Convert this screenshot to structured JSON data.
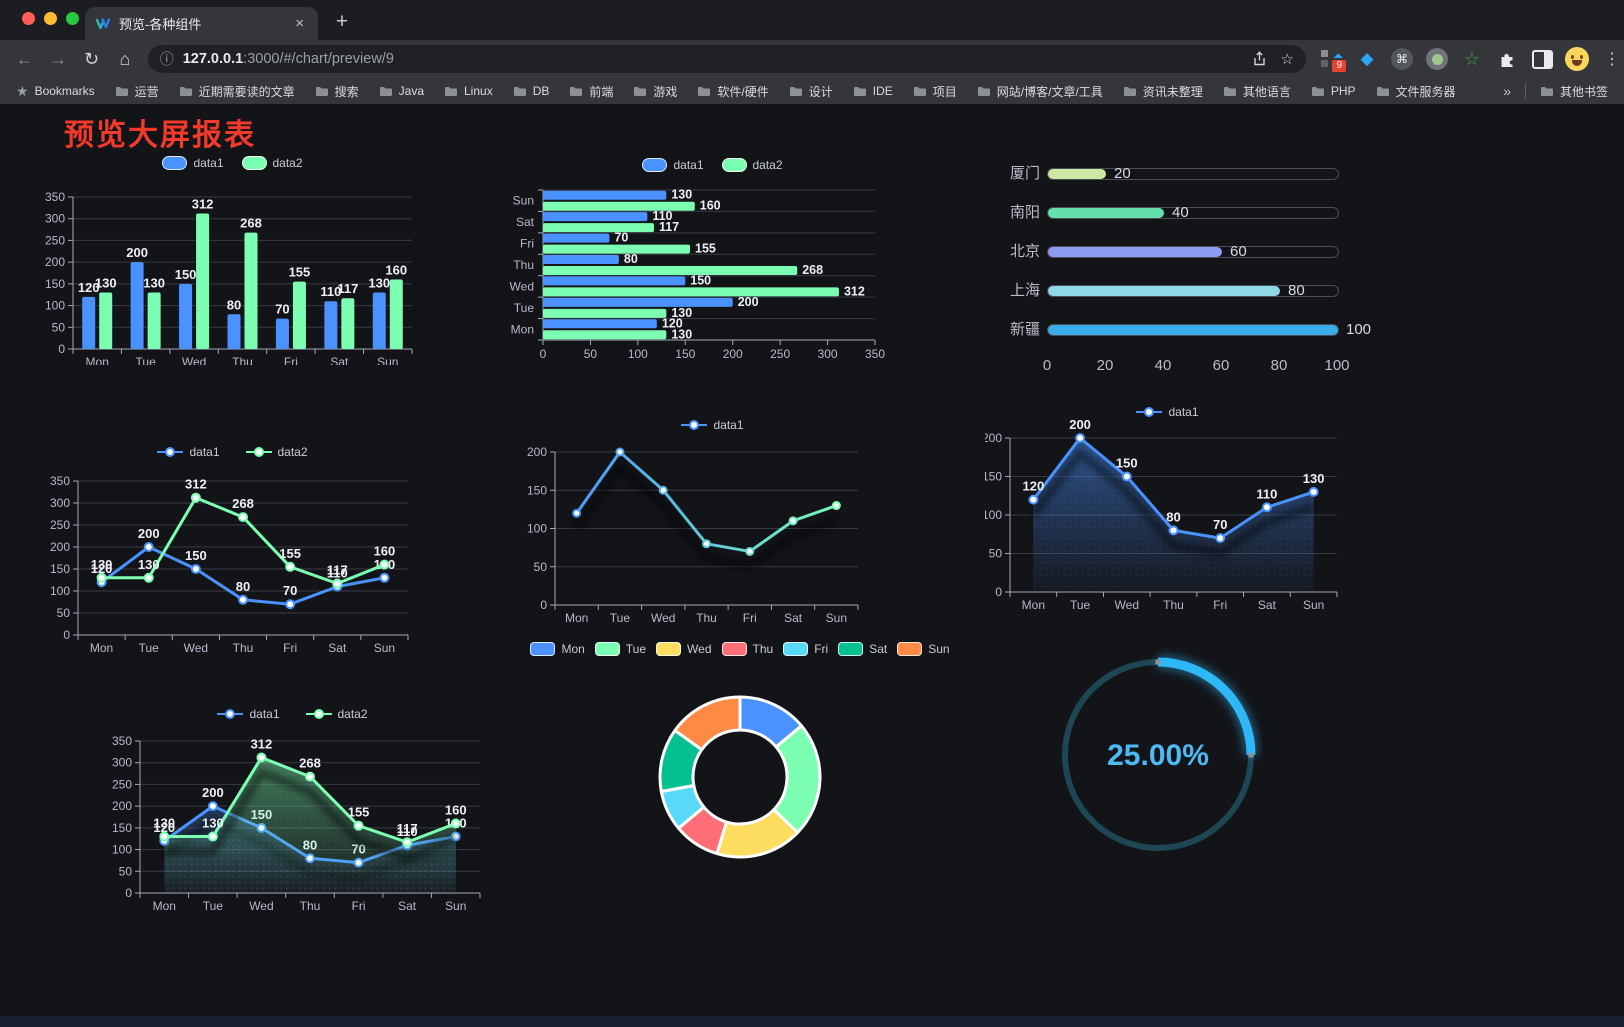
{
  "browser": {
    "tab": {
      "title": "预览-各种组件"
    },
    "tab_close": "×",
    "new_tab_button": "+",
    "url": {
      "host": "127.0.0.1",
      "rest": ":3000/#/chart/preview/9"
    },
    "extension_badge": "9",
    "bookmarks_label": "Bookmarks",
    "bookmarks": [
      "运营",
      "近期需要读的文章",
      "搜索",
      "Java",
      "Linux",
      "DB",
      "前端",
      "游戏",
      "软件/硬件",
      "设计",
      "IDE",
      "项目",
      "网站/博客/文章/工具",
      "资讯未整理",
      "其他语言",
      "PHP",
      "文件服务器"
    ],
    "bookmarks_overflow": "»",
    "other_bookmarks": "其他书签",
    "icons": {
      "back": "←",
      "forward": "→",
      "reload": "↻",
      "home": "⌂",
      "info": "ⓘ",
      "star_outline": "☆",
      "bookmark_star": "★",
      "menu_kebab": "⋮",
      "command": "⌘",
      "extension_diamond": "◆",
      "share": "svg:tray-arrow-up",
      "extensions_puzzle": "svg:puzzle",
      "split_view": "svg:sidebar-square",
      "folder": "svg:folder"
    }
  },
  "page": {
    "title": "预览大屏报表"
  },
  "colors": {
    "blue": "#4992ff",
    "green": "#7cffb2",
    "yellow": "#fddd60",
    "red": "#ff6e76",
    "lightblue": "#58d9f9",
    "teal": "#05c091",
    "orange": "#ff8a45",
    "axis_text": "#b9b8ce",
    "grid": "#3a3a46",
    "axis_line": "#a6a7b8",
    "value_label": "#eef0f6",
    "title_red": "#f1392c",
    "gauge_blue": "#2eb8f8",
    "gauge_track": "#1d4754",
    "gauge_text": "#4db9f5"
  },
  "chart_data": [
    {
      "id": "bar-grouped",
      "type": "bar",
      "categories": [
        "Mon",
        "Tue",
        "Wed",
        "Thu",
        "Fri",
        "Sat",
        "Sun"
      ],
      "series": [
        {
          "name": "data1",
          "color": "#4992ff",
          "values": [
            120,
            200,
            150,
            80,
            70,
            110,
            130
          ]
        },
        {
          "name": "data2",
          "color": "#7cffb2",
          "values": [
            130,
            130,
            312,
            268,
            155,
            117,
            160
          ]
        }
      ],
      "ylim": [
        0,
        350
      ],
      "ystep": 50,
      "legend_position": "top",
      "labels": true
    },
    {
      "id": "bar-horizontal",
      "type": "bar-horizontal",
      "categories_top_to_bottom": [
        "Sun",
        "Sat",
        "Fri",
        "Thu",
        "Wed",
        "Tue",
        "Mon"
      ],
      "series": [
        {
          "name": "data1",
          "color": "#4992ff",
          "values": [
            120,
            200,
            150,
            80,
            70,
            110,
            130
          ]
        },
        {
          "name": "data2",
          "color": "#7cffb2",
          "values": [
            130,
            130,
            312,
            268,
            155,
            117,
            160
          ]
        }
      ],
      "xlim": [
        0,
        350
      ],
      "xstep": 50,
      "legend_position": "top",
      "labels": true
    },
    {
      "id": "city-progress",
      "type": "progress-bars",
      "rows": [
        {
          "label": "厦门",
          "value": 20,
          "color": "#cde8a2"
        },
        {
          "label": "南阳",
          "value": 40,
          "color": "#65e0ab"
        },
        {
          "label": "北京",
          "value": 60,
          "color": "#8e9bf3"
        },
        {
          "label": "上海",
          "value": 80,
          "color": "#8fd9e6"
        },
        {
          "label": "新疆",
          "value": 100,
          "color": "#38ade8"
        }
      ],
      "xlim": [
        0,
        100
      ],
      "xticks": [
        0,
        20,
        40,
        60,
        80,
        100
      ]
    },
    {
      "id": "line-two-series",
      "type": "line",
      "categories": [
        "Mon",
        "Tue",
        "Wed",
        "Thu",
        "Fri",
        "Sat",
        "Sun"
      ],
      "series": [
        {
          "name": "data1",
          "color": "#4992ff",
          "values": [
            120,
            200,
            150,
            80,
            70,
            110,
            130
          ]
        },
        {
          "name": "data2",
          "color": "#7cffb2",
          "values": [
            130,
            130,
            312,
            268,
            155,
            117,
            160
          ]
        }
      ],
      "ylim": [
        0,
        350
      ],
      "ystep": 50,
      "legend_position": "top",
      "labels": true
    },
    {
      "id": "line-gradient",
      "type": "line-gradient",
      "categories": [
        "Mon",
        "Tue",
        "Wed",
        "Thu",
        "Fri",
        "Sat",
        "Sun"
      ],
      "series": [
        {
          "name": "data1",
          "gradient": [
            "#4992ff",
            "#7cffb2"
          ],
          "values": [
            120,
            200,
            150,
            80,
            70,
            110,
            130
          ]
        }
      ],
      "ylim": [
        0,
        200
      ],
      "ystep": 50,
      "legend_position": "top",
      "labels": false,
      "shadow": true
    },
    {
      "id": "area-single",
      "type": "area",
      "categories": [
        "Mon",
        "Tue",
        "Wed",
        "Thu",
        "Fri",
        "Sat",
        "Sun"
      ],
      "series": [
        {
          "name": "data1",
          "color": "#4992ff",
          "values": [
            120,
            200,
            150,
            80,
            70,
            110,
            130
          ]
        }
      ],
      "ylim": [
        0,
        200
      ],
      "ystep": 50,
      "legend_position": "top",
      "labels": true
    },
    {
      "id": "line-area-two",
      "type": "line-area",
      "categories": [
        "Mon",
        "Tue",
        "Wed",
        "Thu",
        "Fri",
        "Sat",
        "Sun"
      ],
      "series": [
        {
          "name": "data1",
          "color": "#4992ff",
          "values": [
            120,
            200,
            150,
            80,
            70,
            110,
            130
          ]
        },
        {
          "name": "data2",
          "color": "#7cffb2",
          "values": [
            130,
            130,
            312,
            268,
            155,
            117,
            160
          ]
        }
      ],
      "ylim": [
        0,
        350
      ],
      "ystep": 50,
      "legend_position": "top",
      "labels": true
    },
    {
      "id": "donut",
      "type": "pie",
      "inner_radius_ratio": 0.59,
      "items": [
        {
          "label": "Mon",
          "value": 120,
          "color": "#4992ff"
        },
        {
          "label": "Tue",
          "value": 200,
          "color": "#7cffb2"
        },
        {
          "label": "Wed",
          "value": 150,
          "color": "#fddd60"
        },
        {
          "label": "Thu",
          "value": 80,
          "color": "#ff6e76"
        },
        {
          "label": "Fri",
          "value": 70,
          "color": "#58d9f9"
        },
        {
          "label": "Sat",
          "value": 110,
          "color": "#05c091"
        },
        {
          "label": "Sun",
          "value": 130,
          "color": "#ff8a45"
        }
      ],
      "legend_position": "top"
    },
    {
      "id": "gauge",
      "type": "gauge",
      "value_percent": 25,
      "label": "25.00%",
      "color": "#2eb8f8",
      "track_color": "#1d4754",
      "text_color": "#4db9f5"
    }
  ]
}
